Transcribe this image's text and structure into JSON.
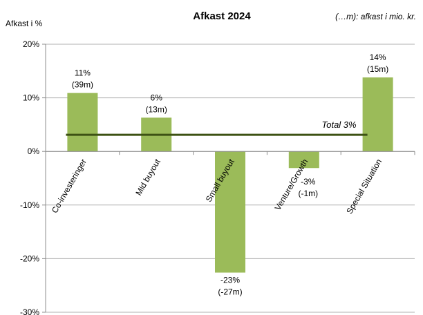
{
  "chart_data": {
    "type": "bar",
    "title": "Afkast 2024",
    "note": "(…m): afkast i mio. kr.",
    "ylabel": "Afkast i %",
    "xlabel": "",
    "ylim": [
      -30,
      20
    ],
    "yticks": [
      20,
      10,
      0,
      -10,
      -20,
      -30
    ],
    "ytick_labels": [
      "20%",
      "10%",
      "0%",
      "-10%",
      "-20%",
      "-30%"
    ],
    "grid": true,
    "categories": [
      "Co-investeringer",
      "Mid buyout",
      "Small buyout",
      "Venture/Growth",
      "Special Situation"
    ],
    "values": [
      11,
      6,
      -23,
      -3,
      14
    ],
    "data_labels": [
      [
        "11%",
        "(39m)"
      ],
      [
        "6%",
        "(13m)"
      ],
      [
        "-23%",
        "(-27m)"
      ],
      [
        "-3%",
        "(-1m)"
      ],
      [
        "14%",
        "(15m)"
      ]
    ],
    "bar_values_exact": [
      10.9,
      6.3,
      -22.6,
      -3.1,
      13.8
    ],
    "total": {
      "label": "Total 3%",
      "value": 3.1
    },
    "colors": {
      "bar": "#9bbb59",
      "total_line": "#3d5214",
      "grid": "#b0b0b0",
      "axis": "#8c8c8c"
    }
  }
}
